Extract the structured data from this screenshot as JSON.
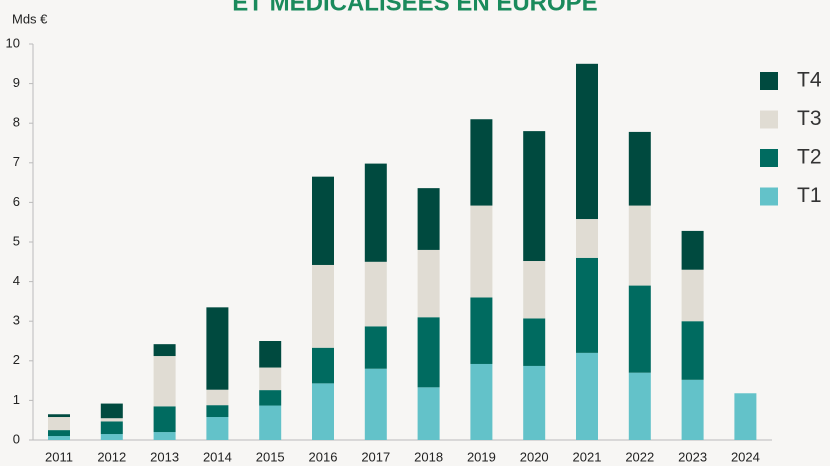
{
  "chart_data": {
    "type": "stacked_bar",
    "title": "ET MÉDICALISÉES EN EUROPE",
    "y_label": "Mds €",
    "categories": [
      "2011",
      "2012",
      "2013",
      "2014",
      "2015",
      "2016",
      "2017",
      "2018",
      "2019",
      "2020",
      "2021",
      "2022",
      "2023",
      "2024"
    ],
    "series": [
      {
        "name": "T1",
        "color": "#63c2c9",
        "values": [
          0.1,
          0.15,
          0.2,
          0.58,
          0.87,
          1.43,
          1.8,
          1.33,
          1.92,
          1.87,
          2.2,
          1.7,
          1.52,
          1.18
        ]
      },
      {
        "name": "T2",
        "color": "#006b60",
        "values": [
          0.15,
          0.32,
          0.65,
          0.3,
          0.39,
          0.9,
          1.07,
          1.77,
          1.68,
          1.2,
          2.4,
          2.2,
          1.48,
          null
        ]
      },
      {
        "name": "T3",
        "color": "#e0dcd3",
        "values": [
          0.33,
          0.08,
          1.27,
          0.39,
          0.57,
          2.09,
          1.63,
          1.7,
          2.32,
          1.45,
          0.98,
          2.02,
          1.3,
          null
        ]
      },
      {
        "name": "T4",
        "color": "#004a3f",
        "values": [
          0.07,
          0.37,
          0.3,
          2.08,
          0.67,
          2.23,
          2.48,
          1.56,
          2.18,
          3.28,
          3.92,
          1.86,
          0.98,
          null
        ]
      }
    ],
    "ylim": [
      0,
      10
    ],
    "yticks": [
      0,
      1,
      2,
      3,
      4,
      5,
      6,
      7,
      8,
      9,
      10
    ],
    "legend": "right"
  }
}
